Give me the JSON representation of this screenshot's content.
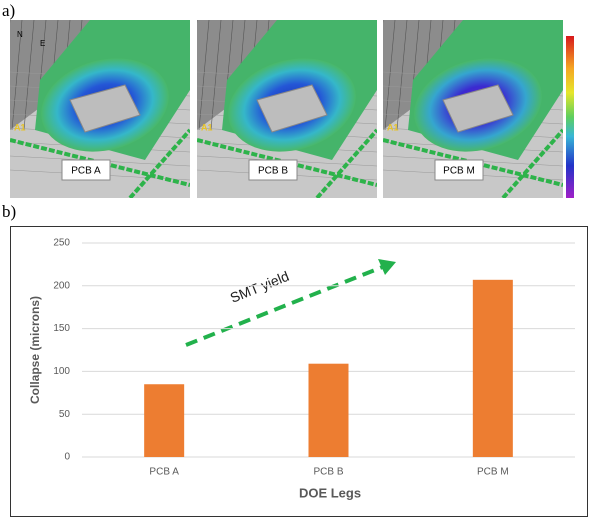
{
  "panel_a": {
    "label": "a)",
    "compass": [
      "N",
      "E"
    ],
    "images": [
      {
        "label": "PCB A",
        "marker": "A1"
      },
      {
        "label": "PCB B",
        "marker": "A1"
      },
      {
        "label": "PCB M",
        "marker": "A1"
      }
    ]
  },
  "panel_b": {
    "label": "b)"
  },
  "chart_data": {
    "type": "bar",
    "y_label": "Collapse (microns)",
    "x_label": "DOE Legs",
    "annotation": "SMT yield",
    "categories": [
      "PCB A",
      "PCB B",
      "PCB M"
    ],
    "values": [
      85,
      109,
      207
    ],
    "color": "#ed7d31",
    "ylim": [
      0,
      250
    ],
    "yticks": [
      0,
      50,
      100,
      150,
      200,
      250
    ],
    "grid": true
  }
}
